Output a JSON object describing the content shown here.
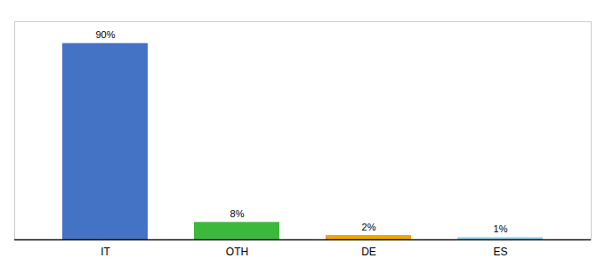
{
  "chart_data": {
    "type": "bar",
    "categories": [
      "IT",
      "OTH",
      "DE",
      "ES"
    ],
    "values": [
      90,
      8,
      2,
      1
    ],
    "value_labels": [
      "90%",
      "8%",
      "2%",
      "1%"
    ],
    "data_labels": true,
    "colors": [
      "#4472c4",
      "#3cb93c",
      "#f0a500",
      "#87ceeb"
    ],
    "ylim": [
      0,
      100
    ],
    "tick_labels": "x"
  }
}
